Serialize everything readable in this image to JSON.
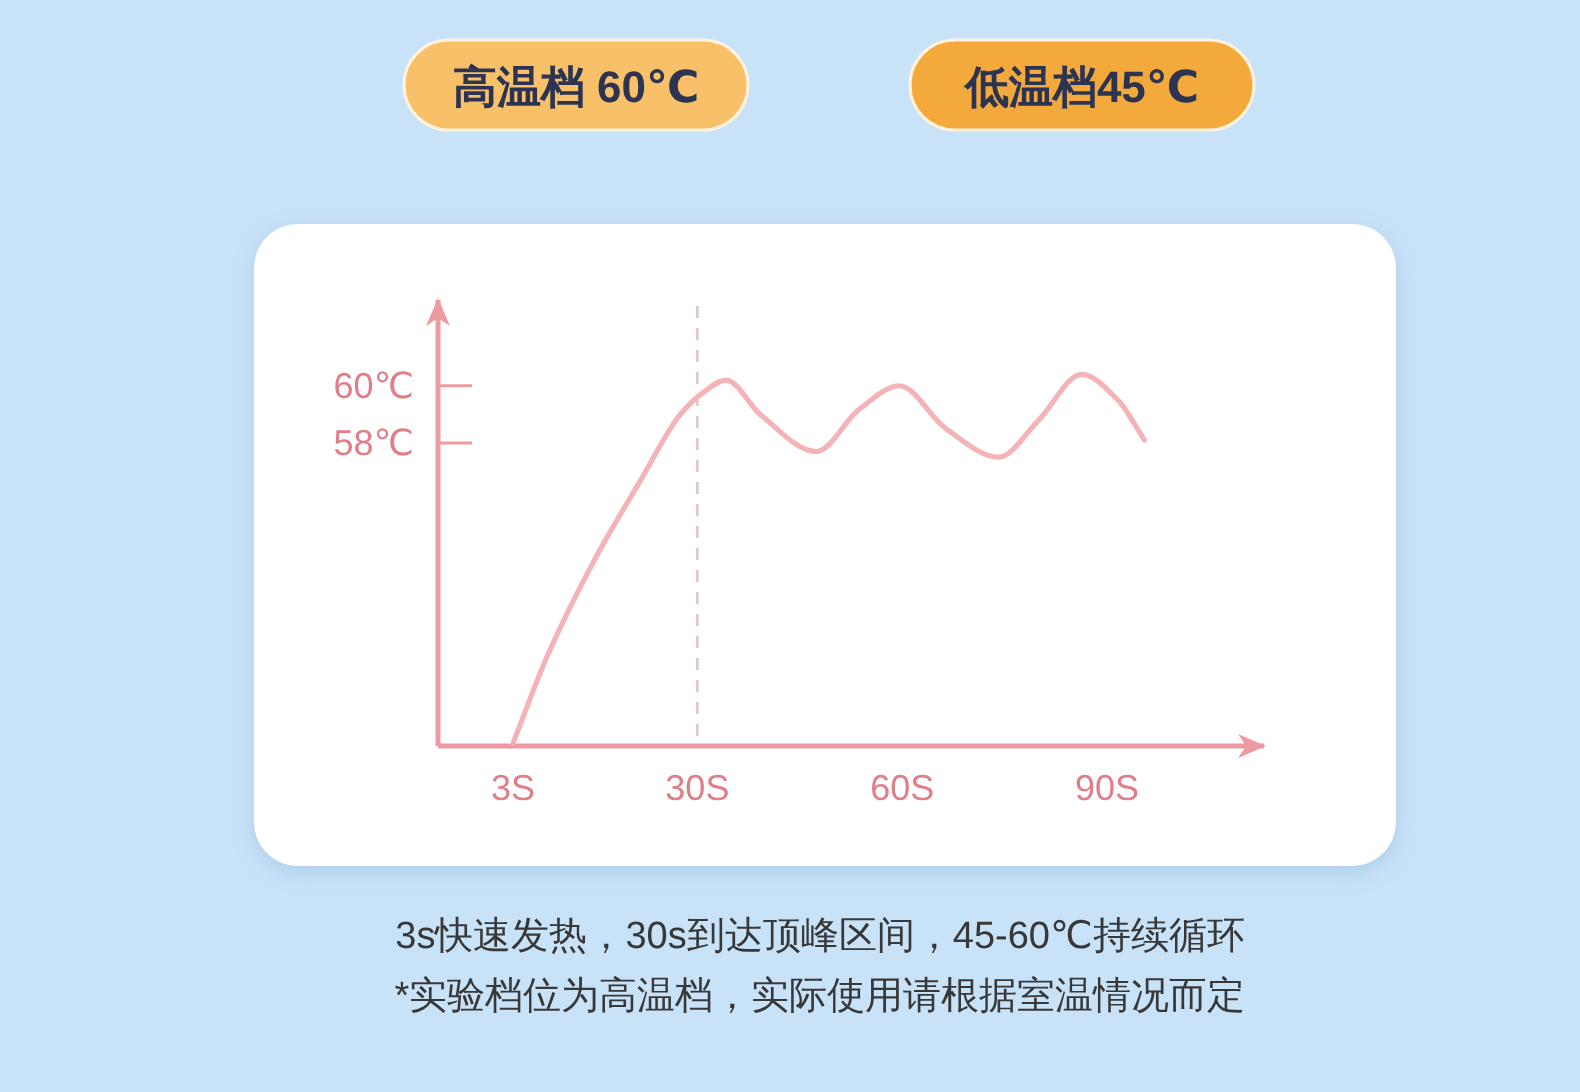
{
  "chart_data": {
    "type": "line",
    "x": [
      3,
      8.1,
      14.9,
      21.7,
      27.5,
      30.5,
      34.2,
      39.2,
      47.4,
      53.8,
      59.6,
      66.4,
      74.1,
      80,
      86.3,
      91.6,
      95.5
    ],
    "values": [
      47.5,
      50.6,
      53.9,
      56.7,
      59,
      59.7,
      60.2,
      59,
      57.7,
      59.2,
      60,
      58.5,
      57.5,
      58.8,
      60.4,
      59.5,
      58.1
    ],
    "color": "#f4b4b7",
    "xlim": [
      -8,
      113
    ],
    "ylim": [
      47.4,
      63
    ],
    "xticks": [
      {
        "value": 3,
        "label": "3S"
      },
      {
        "value": 30,
        "label": "30S"
      },
      {
        "value": 60,
        "label": "60S"
      },
      {
        "value": 90,
        "label": "90S"
      }
    ],
    "yticks": [
      {
        "value": 60,
        "label": "60℃"
      },
      {
        "value": 58,
        "label": "58℃"
      }
    ],
    "ref_lines": [
      {
        "axis": "x",
        "value": 30,
        "color": "#dcc4c7",
        "line_style": "dashed"
      }
    ],
    "annotations": [
      "高温档 60℃",
      "低温档45℃",
      "3s快速发热，30s到达顶峰区间，45-60℃持续循环",
      "*实验档位为高温档，实际使用请根据室温情况而定"
    ]
  }
}
